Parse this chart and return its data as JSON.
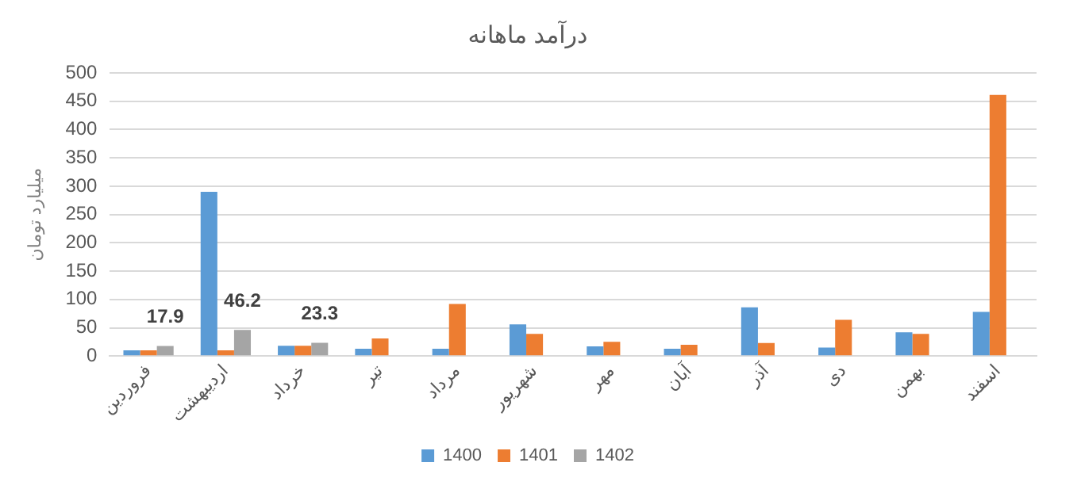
{
  "chart_data": {
    "type": "bar",
    "title": "درآمد ماهانه",
    "ylabel": "میلیارد تومان",
    "categories": [
      "فروردین",
      "اردیبهشت",
      "خرداد",
      "تیر",
      "مرداد",
      "شهریور",
      "مهر",
      "آبان",
      "آذر",
      "دی",
      "بهمن",
      "اسفند"
    ],
    "series": [
      {
        "name": "1400",
        "color": "#5b9bd5",
        "values": [
          10,
          290,
          18,
          13,
          13,
          56,
          17,
          13,
          86,
          15,
          42,
          78
        ]
      },
      {
        "name": "1401",
        "color": "#ed7d31",
        "values": [
          10,
          10,
          18,
          31,
          92,
          39,
          25,
          20,
          23,
          64,
          39,
          461
        ]
      },
      {
        "name": "1402",
        "color": "#a5a5a5",
        "values": [
          17.9,
          46.2,
          23.3,
          null,
          null,
          null,
          null,
          null,
          null,
          null,
          null,
          null
        ],
        "value_labels": [
          "17.9",
          "46.2",
          "23.3",
          null,
          null,
          null,
          null,
          null,
          null,
          null,
          null,
          null
        ]
      }
    ],
    "ylim": [
      0,
      500
    ],
    "yticks": [
      0,
      50,
      100,
      150,
      200,
      250,
      300,
      350,
      400,
      450,
      500
    ],
    "grid": "y",
    "legend": "bottom"
  }
}
